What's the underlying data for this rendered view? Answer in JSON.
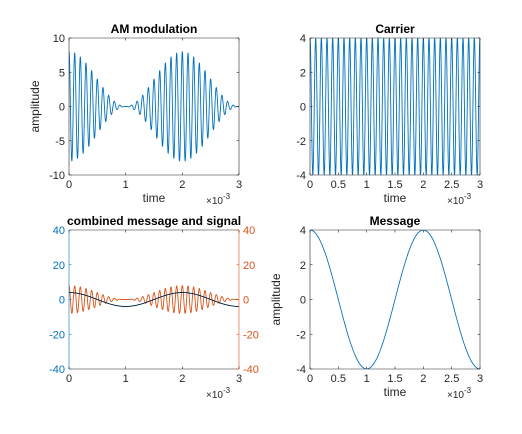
{
  "chart_data": [
    {
      "id": "am",
      "type": "line",
      "title": "AM modulation",
      "xlabel": "time",
      "ylabel": "amplitude",
      "x_exponent": "×10^-3",
      "xlim": [
        0,
        3
      ],
      "ylim": [
        -10,
        10
      ],
      "xticks": [
        0,
        1,
        2,
        3
      ],
      "yticks": [
        -10,
        -5,
        0,
        5,
        10
      ],
      "grid": false,
      "series": [
        {
          "color": "#0072BD",
          "formula": "(4cos(2π·500t)+4)·cos(2π·10000t)",
          "x_unit_scale": 0.001,
          "message_freq_hz": 500,
          "carrier_freq_hz": 10000,
          "message_amp": 4,
          "offset": 4
        }
      ]
    },
    {
      "id": "carrier",
      "type": "line",
      "title": "Carrier",
      "xlabel": "time",
      "ylabel": "",
      "x_exponent": "×10^-3",
      "xlim": [
        0,
        3
      ],
      "ylim": [
        -4,
        4
      ],
      "xticks": [
        0,
        0.5,
        1,
        1.5,
        2,
        2.5,
        3
      ],
      "yticks": [
        -4,
        -2,
        0,
        2,
        4
      ],
      "grid": false,
      "series": [
        {
          "color": "#0072BD",
          "formula": "4cos(2π·10000t)",
          "carrier_freq_hz": 10000,
          "amp": 4
        }
      ]
    },
    {
      "id": "combined",
      "type": "line",
      "title": "combined message and signal",
      "xlabel": "",
      "ylabel": "",
      "x_exponent": "×10^-3",
      "xlim": [
        0,
        3
      ],
      "ylim_left": [
        -40,
        40
      ],
      "ylim_right": [
        -40,
        40
      ],
      "xticks": [
        0,
        1,
        2,
        3
      ],
      "yticks_left": [
        -40,
        -20,
        0,
        20,
        40
      ],
      "yticks_right": [
        -40,
        -20,
        0,
        20,
        40
      ],
      "left_axis_color": "#0072BD",
      "right_axis_color": "#D95319",
      "grid": false,
      "series": [
        {
          "color": "#D95319",
          "axis": "right",
          "formula": "(4cos(2π·500t)+4)·cos(2π·10000t)"
        },
        {
          "color": "#0072BD",
          "axis": "left",
          "formula": "4cos(2π·500t)"
        },
        {
          "color": "#000000",
          "axis": "left",
          "formula": "4cos(2π·500t)"
        }
      ]
    },
    {
      "id": "message",
      "type": "line",
      "title": "Message",
      "xlabel": "time",
      "ylabel": "amplitude",
      "x_exponent": "×10^-3",
      "xlim": [
        0,
        3
      ],
      "ylim": [
        -4,
        4
      ],
      "xticks": [
        0,
        0.5,
        1,
        1.5,
        2,
        2.5,
        3
      ],
      "yticks": [
        -4,
        -2,
        0,
        2,
        4
      ],
      "grid": false,
      "series": [
        {
          "color": "#0072BD",
          "formula": "4cos(2π·500t)",
          "message_freq_hz": 500,
          "amp": 4
        }
      ]
    }
  ]
}
